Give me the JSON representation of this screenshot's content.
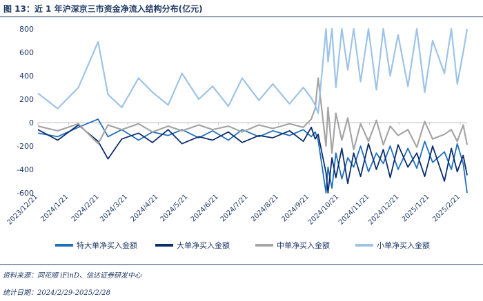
{
  "figure": {
    "title": "图 13：近 1 年沪深京三市资金净流入结构分布(亿元)",
    "source": "资料来源：同花顺 iFinD、信达证券研发中心",
    "period": "统计日期：2024/2/29-2025/2/28"
  },
  "chart_data": {
    "type": "line",
    "title": "",
    "xlabel": "",
    "ylabel": "",
    "ylim": [
      -600,
      800
    ],
    "yticks": [
      -600,
      -400,
      -200,
      0,
      200,
      400,
      600,
      800
    ],
    "x_tick_labels": [
      "2023/12/21",
      "2024/1/21",
      "2024/2/21",
      "2024/3/21",
      "2024/4/21",
      "2024/5/21",
      "2024/6/21",
      "2024/7/21",
      "2024/8/21",
      "2024/9/21",
      "2024/10/21",
      "2024/11/21",
      "2024/12/21",
      "2025/1/21",
      "2025/2/21"
    ],
    "x_tick_dates": [
      "2023-12-21",
      "2024-01-21",
      "2024-02-21",
      "2024-03-21",
      "2024-04-21",
      "2024-05-21",
      "2024-06-21",
      "2024-07-21",
      "2024-08-21",
      "2024-09-21",
      "2024-10-21",
      "2024-11-21",
      "2024-12-21",
      "2025-01-21",
      "2025-02-21"
    ],
    "x_range": [
      "2023-12-21",
      "2025-02-28"
    ],
    "legend_position": "bottom",
    "grid": false,
    "series": [
      {
        "name": "特大单净买入金额",
        "color": "#1f6fbf",
        "width": 1.8,
        "x": [
          "2023-12-21",
          "2024-01-10",
          "2024-01-31",
          "2024-02-20",
          "2024-03-01",
          "2024-03-15",
          "2024-04-01",
          "2024-04-15",
          "2024-05-01",
          "2024-05-15",
          "2024-06-01",
          "2024-06-15",
          "2024-07-01",
          "2024-07-15",
          "2024-08-01",
          "2024-08-15",
          "2024-09-01",
          "2024-09-15",
          "2024-09-23",
          "2024-09-27",
          "2024-09-30",
          "2024-10-08",
          "2024-10-10",
          "2024-10-14",
          "2024-10-18",
          "2024-10-24",
          "2024-10-30",
          "2024-11-05",
          "2024-11-12",
          "2024-11-20",
          "2024-11-28",
          "2024-12-05",
          "2024-12-12",
          "2024-12-20",
          "2024-12-30",
          "2025-01-08",
          "2025-01-16",
          "2025-01-24",
          "2025-02-05",
          "2025-02-12",
          "2025-02-18",
          "2025-02-24",
          "2025-02-28"
        ],
        "y": [
          -90,
          -120,
          -40,
          30,
          -120,
          -60,
          -150,
          -80,
          -110,
          -60,
          -130,
          -70,
          -150,
          -60,
          -120,
          -70,
          -110,
          -60,
          -120,
          -80,
          -150,
          -610,
          -380,
          -560,
          -260,
          -480,
          -300,
          -380,
          -200,
          -420,
          -260,
          -350,
          -200,
          -400,
          -220,
          -390,
          -160,
          -340,
          -250,
          -400,
          -180,
          -350,
          -600
        ]
      },
      {
        "name": "大单净买入金额",
        "color": "#0b2d6b",
        "width": 1.8,
        "x": [
          "2023-12-21",
          "2024-01-10",
          "2024-01-31",
          "2024-02-20",
          "2024-03-01",
          "2024-03-15",
          "2024-04-01",
          "2024-04-15",
          "2024-05-01",
          "2024-05-15",
          "2024-06-01",
          "2024-06-15",
          "2024-07-01",
          "2024-07-15",
          "2024-08-01",
          "2024-08-15",
          "2024-09-01",
          "2024-09-15",
          "2024-09-23",
          "2024-09-27",
          "2024-09-30",
          "2024-10-08",
          "2024-10-10",
          "2024-10-14",
          "2024-10-18",
          "2024-10-24",
          "2024-10-30",
          "2024-11-05",
          "2024-11-12",
          "2024-11-20",
          "2024-11-28",
          "2024-12-05",
          "2024-12-12",
          "2024-12-20",
          "2024-12-30",
          "2025-01-08",
          "2025-01-16",
          "2025-01-24",
          "2025-02-05",
          "2025-02-12",
          "2025-02-18",
          "2025-02-24",
          "2025-02-28"
        ],
        "y": [
          -60,
          -150,
          -20,
          -160,
          -310,
          -140,
          -90,
          -170,
          -60,
          -180,
          -120,
          -150,
          -80,
          -170,
          -110,
          -130,
          -70,
          -160,
          -40,
          -140,
          -100,
          -430,
          -600,
          -300,
          -470,
          -220,
          -520,
          -260,
          -460,
          -180,
          -400,
          -230,
          -470,
          -190,
          -380,
          -260,
          -460,
          -200,
          -500,
          -220,
          -420,
          -280,
          -450
        ]
      },
      {
        "name": "中单净买入金额",
        "color": "#a5a5a5",
        "width": 2.2,
        "x": [
          "2023-12-21",
          "2024-01-10",
          "2024-01-31",
          "2024-02-20",
          "2024-03-01",
          "2024-03-15",
          "2024-04-01",
          "2024-04-15",
          "2024-05-01",
          "2024-05-15",
          "2024-06-01",
          "2024-06-15",
          "2024-07-01",
          "2024-07-15",
          "2024-08-01",
          "2024-08-15",
          "2024-09-01",
          "2024-09-15",
          "2024-09-23",
          "2024-09-27",
          "2024-09-30",
          "2024-10-08",
          "2024-10-10",
          "2024-10-14",
          "2024-10-18",
          "2024-10-24",
          "2024-10-30",
          "2024-11-05",
          "2024-11-12",
          "2024-11-20",
          "2024-11-28",
          "2024-12-05",
          "2024-12-12",
          "2024-12-20",
          "2024-12-30",
          "2025-01-08",
          "2025-01-16",
          "2025-01-24",
          "2025-02-05",
          "2025-02-12",
          "2025-02-18",
          "2025-02-24",
          "2025-02-28"
        ],
        "y": [
          -30,
          -70,
          -10,
          -180,
          -20,
          -60,
          -10,
          -80,
          -30,
          -70,
          -20,
          -60,
          -30,
          -80,
          -20,
          -50,
          -10,
          -40,
          30,
          120,
          380,
          -200,
          130,
          -260,
          80,
          -150,
          40,
          -230,
          -10,
          -160,
          20,
          -190,
          -30,
          -110,
          -60,
          -210,
          10,
          -140,
          -100,
          -60,
          -160,
          -20,
          -190
        ]
      },
      {
        "name": "小单净买入金额",
        "color": "#9dc3e6",
        "width": 2.2,
        "x": [
          "2023-12-21",
          "2024-01-10",
          "2024-01-31",
          "2024-02-20",
          "2024-03-01",
          "2024-03-15",
          "2024-04-01",
          "2024-04-15",
          "2024-05-01",
          "2024-05-15",
          "2024-06-01",
          "2024-06-15",
          "2024-07-01",
          "2024-07-15",
          "2024-08-01",
          "2024-08-15",
          "2024-09-01",
          "2024-09-15",
          "2024-09-23",
          "2024-09-27",
          "2024-09-30",
          "2024-10-08",
          "2024-10-10",
          "2024-10-14",
          "2024-10-18",
          "2024-10-24",
          "2024-10-30",
          "2024-11-05",
          "2024-11-12",
          "2024-11-20",
          "2024-11-28",
          "2024-12-05",
          "2024-12-12",
          "2024-12-20",
          "2024-12-30",
          "2025-01-08",
          "2025-01-16",
          "2025-01-24",
          "2025-02-05",
          "2025-02-12",
          "2025-02-18",
          "2025-02-24",
          "2025-02-28"
        ],
        "y": [
          250,
          120,
          300,
          690,
          240,
          130,
          380,
          260,
          150,
          420,
          200,
          310,
          140,
          380,
          190,
          330,
          160,
          300,
          210,
          150,
          80,
          800,
          520,
          800,
          300,
          800,
          450,
          800,
          350,
          800,
          280,
          800,
          400,
          750,
          310,
          800,
          260,
          700,
          420,
          800,
          330,
          600,
          800
        ]
      }
    ]
  }
}
